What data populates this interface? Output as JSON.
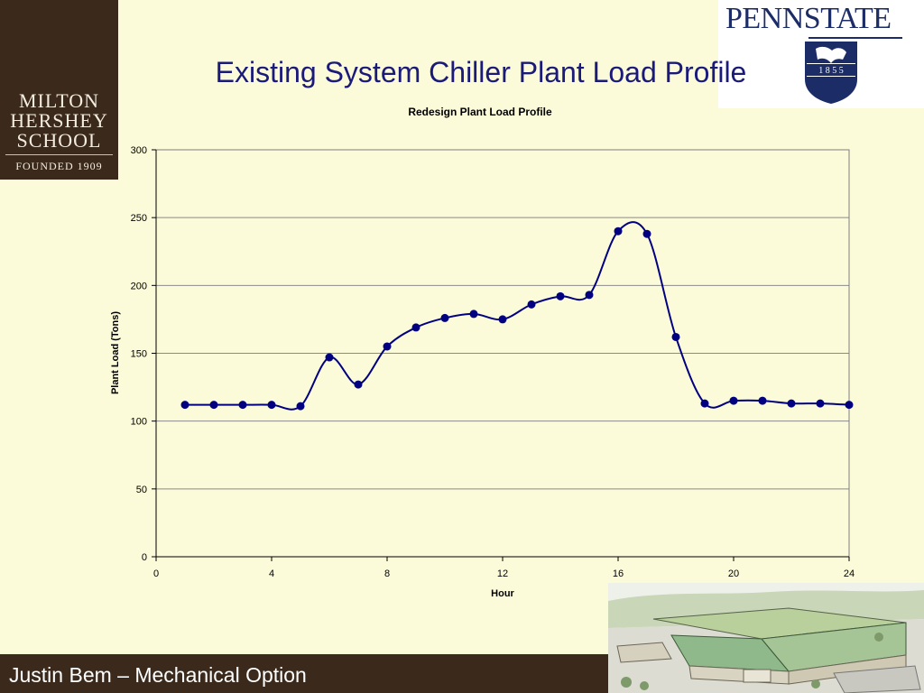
{
  "slide": {
    "title": "Existing System Chiller Plant Load Profile",
    "footer": "Justin Bem – Mechanical Option"
  },
  "logos": {
    "mhs_lines": [
      "MILTON",
      "HERSHEY",
      "SCHOOL"
    ],
    "mhs_founded": "FOUNDED 1909",
    "psu_word": "PENNSTATE",
    "psu_year": "1 8 5 5"
  },
  "colors": {
    "background": "#fbfad9",
    "brown": "#3b2a1c",
    "series": "#000080",
    "title": "#1a1a7a"
  },
  "chart_data": {
    "type": "scatter",
    "title": "Redesign Plant Load Profile",
    "xlabel": "Hour",
    "ylabel": "Plant Load (Tons)",
    "xlim": [
      0,
      24
    ],
    "ylim": [
      0,
      300
    ],
    "xticks": [
      0,
      4,
      8,
      12,
      16,
      20,
      24
    ],
    "yticks": [
      0,
      50,
      100,
      150,
      200,
      250,
      300
    ],
    "grid": "horizontal",
    "smooth": true,
    "series": [
      {
        "x": [
          1,
          2,
          3,
          4,
          5,
          6,
          7,
          8,
          9,
          10,
          11,
          12,
          13,
          14,
          15,
          16,
          17,
          18,
          19,
          20,
          21,
          22,
          23,
          24
        ],
        "y": [
          112,
          112,
          112,
          112,
          111,
          147,
          127,
          155,
          169,
          176,
          179,
          175,
          186,
          192,
          193,
          240,
          238,
          162,
          113,
          115,
          115,
          113,
          113,
          112
        ]
      }
    ]
  }
}
